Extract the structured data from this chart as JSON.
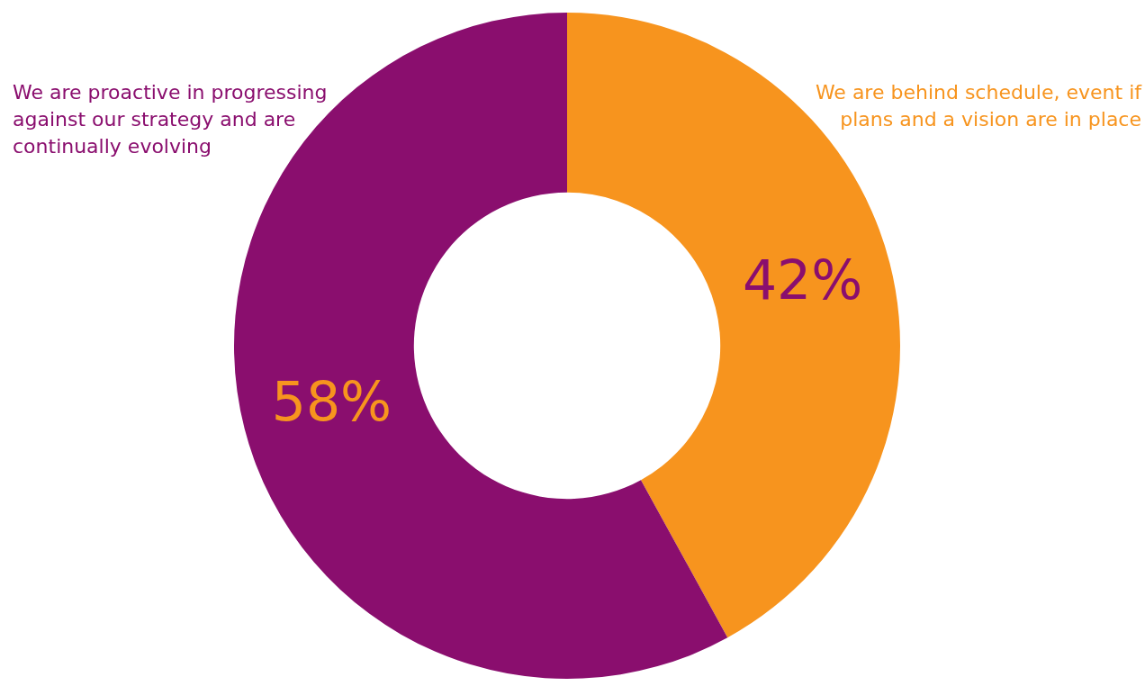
{
  "chart_data": {
    "type": "donut",
    "categories": [
      "We are behind schedule, event if plans and a vision are in place",
      "We are proactive in progressing against our strategy and are continually evolving"
    ],
    "values": [
      42,
      58
    ],
    "colors": [
      "#f7941e",
      "#8a0e6e"
    ],
    "value_labels": [
      "42%",
      "58%"
    ],
    "legend": false
  }
}
